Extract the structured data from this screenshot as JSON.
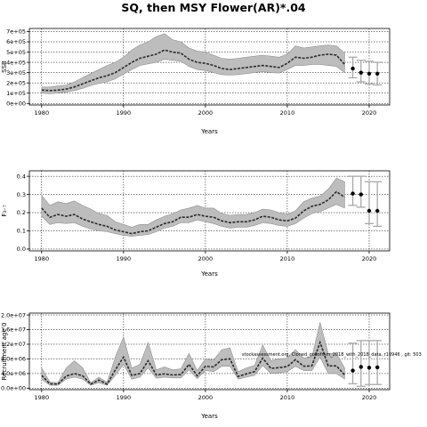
{
  "title": "SQ, then MSY Flower(AR)*.04",
  "chart_data": [
    {
      "type": "line",
      "xlabel": "Years",
      "ylabel": "SSB",
      "xlim": [
        1978.5,
        2022.5
      ],
      "ylim": [
        -15000,
        730000
      ],
      "x_ticks": [
        1980,
        1990,
        2000,
        2010,
        2020
      ],
      "x_tick_labels": [
        "1980",
        "1990",
        "2000",
        "2010",
        "2020"
      ],
      "y_ticks": [
        0,
        100000,
        200000,
        300000,
        400000,
        500000,
        600000,
        700000
      ],
      "y_tick_labels": [
        "0e+00",
        "1e+05",
        "2e+05",
        "3e+05",
        "4e+05",
        "5e+05",
        "6e+05",
        "7e+05"
      ],
      "grid": true,
      "history": {
        "x": [
          1980,
          1981,
          1982,
          1983,
          1984,
          1985,
          1986,
          1987,
          1988,
          1989,
          1990,
          1991,
          1992,
          1993,
          1994,
          1995,
          1996,
          1997,
          1998,
          1999,
          2000,
          2001,
          2002,
          2003,
          2004,
          2005,
          2006,
          2007,
          2008,
          2009,
          2010,
          2011,
          2012,
          2013,
          2014,
          2015,
          2016,
          2017
        ],
        "median": [
          130000,
          125000,
          130000,
          140000,
          160000,
          190000,
          220000,
          250000,
          270000,
          300000,
          350000,
          400000,
          440000,
          460000,
          480000,
          520000,
          500000,
          490000,
          430000,
          400000,
          390000,
          370000,
          340000,
          330000,
          340000,
          350000,
          360000,
          370000,
          360000,
          350000,
          390000,
          450000,
          440000,
          450000,
          470000,
          480000,
          470000,
          380000
        ],
        "lower": [
          100000,
          95000,
          100000,
          110000,
          125000,
          145000,
          175000,
          195000,
          210000,
          240000,
          285000,
          330000,
          370000,
          385000,
          400000,
          430000,
          420000,
          410000,
          360000,
          330000,
          320000,
          300000,
          280000,
          275000,
          280000,
          290000,
          300000,
          310000,
          300000,
          295000,
          330000,
          370000,
          370000,
          380000,
          380000,
          370000,
          360000,
          300000
        ],
        "upper": [
          160000,
          160000,
          170000,
          180000,
          210000,
          250000,
          290000,
          330000,
          370000,
          400000,
          450000,
          520000,
          570000,
          600000,
          650000,
          680000,
          620000,
          600000,
          540000,
          510000,
          500000,
          470000,
          440000,
          430000,
          440000,
          450000,
          460000,
          470000,
          460000,
          450000,
          480000,
          560000,
          540000,
          550000,
          560000,
          570000,
          560000,
          490000
        ]
      },
      "projection": {
        "x": [
          2018,
          2019,
          2020,
          2021
        ],
        "median": [
          340000,
          300000,
          290000,
          290000
        ],
        "lower": [
          250000,
          210000,
          190000,
          180000
        ],
        "upper": [
          450000,
          420000,
          410000,
          400000
        ]
      },
      "colors": {
        "band": "#bdbdbd",
        "band_edge": "#909090",
        "line": "#2b2b2b",
        "marker": "#000000",
        "error": "#a8a8a8"
      }
    },
    {
      "type": "line",
      "xlabel": "Years",
      "ylabel": "F₃₋₇",
      "xlim": [
        1978.5,
        2022.5
      ],
      "ylim": [
        -0.01,
        0.43
      ],
      "x_ticks": [
        1980,
        1990,
        2000,
        2010,
        2020
      ],
      "x_tick_labels": [
        "1980",
        "1990",
        "2000",
        "2010",
        "2020"
      ],
      "y_ticks": [
        0.0,
        0.1,
        0.2,
        0.3,
        0.4
      ],
      "y_tick_labels": [
        "0.0",
        "0.1",
        "0.2",
        "0.3",
        "0.4"
      ],
      "grid": true,
      "history": {
        "x": [
          1980,
          1981,
          1982,
          1983,
          1984,
          1985,
          1986,
          1987,
          1988,
          1989,
          1990,
          1991,
          1992,
          1993,
          1994,
          1995,
          1996,
          1997,
          1998,
          1999,
          2000,
          2001,
          2002,
          2003,
          2004,
          2005,
          2006,
          2007,
          2008,
          2009,
          2010,
          2011,
          2012,
          2013,
          2014,
          2015,
          2016,
          2017
        ],
        "median": [
          0.225,
          0.175,
          0.19,
          0.18,
          0.19,
          0.165,
          0.15,
          0.135,
          0.125,
          0.105,
          0.095,
          0.085,
          0.095,
          0.1,
          0.12,
          0.14,
          0.15,
          0.175,
          0.175,
          0.19,
          0.18,
          0.175,
          0.155,
          0.145,
          0.15,
          0.15,
          0.16,
          0.18,
          0.175,
          0.16,
          0.155,
          0.17,
          0.21,
          0.235,
          0.245,
          0.27,
          0.315,
          0.285
        ],
        "lower": [
          0.18,
          0.135,
          0.145,
          0.14,
          0.145,
          0.125,
          0.11,
          0.1,
          0.095,
          0.085,
          0.075,
          0.07,
          0.075,
          0.08,
          0.095,
          0.115,
          0.125,
          0.145,
          0.145,
          0.16,
          0.15,
          0.14,
          0.125,
          0.115,
          0.12,
          0.12,
          0.13,
          0.145,
          0.14,
          0.13,
          0.125,
          0.14,
          0.17,
          0.195,
          0.205,
          0.225,
          0.245,
          0.225
        ],
        "upper": [
          0.295,
          0.24,
          0.26,
          0.25,
          0.265,
          0.24,
          0.22,
          0.195,
          0.185,
          0.15,
          0.135,
          0.12,
          0.135,
          0.135,
          0.16,
          0.18,
          0.195,
          0.215,
          0.225,
          0.24,
          0.225,
          0.225,
          0.195,
          0.185,
          0.19,
          0.19,
          0.2,
          0.22,
          0.215,
          0.2,
          0.19,
          0.21,
          0.26,
          0.28,
          0.29,
          0.33,
          0.39,
          0.37
        ]
      },
      "projection": {
        "x": [
          2018,
          2019,
          2020,
          2021
        ],
        "median": [
          0.305,
          0.3,
          0.21,
          0.21
        ],
        "lower": [
          0.24,
          0.23,
          0.14,
          0.125
        ],
        "upper": [
          0.4,
          0.4,
          0.37,
          0.37
        ]
      },
      "colors": {
        "band": "#bdbdbd",
        "band_edge": "#909090",
        "line": "#2b2b2b",
        "marker": "#000000",
        "error": "#a8a8a8"
      }
    },
    {
      "type": "line",
      "xlabel": "Years",
      "ylabel": "Recruitment age 0",
      "xlim": [
        1978.5,
        2022.5
      ],
      "ylim": [
        -400000,
        20500000
      ],
      "x_ticks": [
        1980,
        1990,
        2000,
        2010,
        2020
      ],
      "x_tick_labels": [
        "1980",
        "1990",
        "2000",
        "2010",
        "2020"
      ],
      "y_ticks": [
        0,
        4000000,
        8000000,
        12000000,
        16000000,
        20000000
      ],
      "y_tick_labels": [
        "0.0e+00",
        "4.0e+06",
        "8.0e+06",
        "1.2e+07",
        "1.6e+07",
        "2.0e+07"
      ],
      "grid": true,
      "annotation": "stockassessment.org, Cloned_goliofmm_2018_with_2018_data, r10946 , git: 503",
      "history": {
        "x": [
          1980,
          1981,
          1982,
          1983,
          1984,
          1985,
          1986,
          1987,
          1988,
          1989,
          1990,
          1991,
          1992,
          1993,
          1994,
          1995,
          1996,
          1997,
          1998,
          1999,
          2000,
          2001,
          2002,
          2003,
          2004,
          2005,
          2006,
          2007,
          2008,
          2009,
          2010,
          2011,
          2012,
          2013,
          2014,
          2015,
          2016,
          2017
        ],
        "median": [
          3500000,
          1200000,
          1100000,
          3300000,
          4000000,
          3400000,
          1100000,
          2200000,
          1100000,
          5000000,
          8500000,
          3500000,
          4000000,
          7500000,
          3600000,
          3900000,
          3600000,
          3700000,
          6500000,
          3400000,
          6000000,
          5800000,
          7800000,
          8000000,
          3200000,
          3900000,
          4500000,
          8200000,
          5400000,
          5600000,
          5900000,
          7800000,
          6000000,
          6100000,
          12500000,
          6100000,
          6100000,
          3600000
        ],
        "lower": [
          2500000,
          800000,
          800000,
          2500000,
          3000000,
          2500000,
          800000,
          1500000,
          800000,
          3500000,
          6500000,
          2500000,
          3000000,
          5500000,
          2700000,
          3000000,
          2800000,
          2800000,
          5000000,
          2600000,
          4800000,
          4500000,
          6000000,
          6000000,
          2500000,
          3000000,
          3500000,
          6200000,
          4000000,
          4200000,
          4500000,
          6000000,
          4800000,
          4800000,
          8500000,
          4000000,
          4000000,
          2500000
        ],
        "upper": [
          5500000,
          1700000,
          1500000,
          5500000,
          7500000,
          5600000,
          1500000,
          3000000,
          1600000,
          8500000,
          14000000,
          5500000,
          6500000,
          12500000,
          5000000,
          5800000,
          5000000,
          5300000,
          9500000,
          4800000,
          8000000,
          7700000,
          10500000,
          11000000,
          4500000,
          5500000,
          6200000,
          11800000,
          7500000,
          8000000,
          8200000,
          10500000,
          8200000,
          8500000,
          18000000,
          9500000,
          9500000,
          5500000
        ]
      },
      "projection": {
        "x": [
          2018,
          2019,
          2020,
          2021
        ],
        "median": [
          4800000,
          5800000,
          5600000,
          5700000
        ],
        "lower": [
          1200000,
          500000,
          1000000,
          1000000
        ],
        "upper": [
          12300000,
          13000000,
          13000000,
          13000000
        ]
      },
      "colors": {
        "band": "#bdbdbd",
        "band_edge": "#909090",
        "line": "#2b2b2b",
        "marker": "#000000",
        "error": "#a8a8a8"
      }
    }
  ]
}
